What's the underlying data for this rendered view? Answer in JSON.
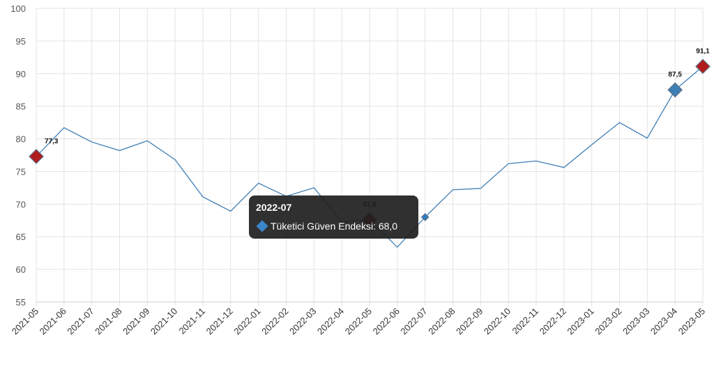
{
  "chart_data": {
    "type": "line",
    "x": [
      "2021-05",
      "2021-06",
      "2021-07",
      "2021-08",
      "2021-09",
      "2021-10",
      "2021-11",
      "2021-12",
      "2022-01",
      "2022-02",
      "2022-03",
      "2022-04",
      "2022-05",
      "2022-06",
      "2022-07",
      "2022-08",
      "2022-09",
      "2022-10",
      "2022-11",
      "2022-12",
      "2023-01",
      "2023-02",
      "2023-03",
      "2023-04",
      "2023-05"
    ],
    "series": [
      {
        "name": "Tüketici Güven Endeksi",
        "values": [
          77.3,
          81.7,
          79.5,
          78.2,
          79.7,
          76.8,
          71.1,
          68.9,
          73.2,
          71.2,
          72.5,
          67.3,
          67.6,
          63.4,
          68.0,
          72.2,
          72.4,
          76.2,
          76.6,
          75.6,
          79.1,
          82.5,
          80.1,
          87.5,
          91.1
        ],
        "color": "#3f7fb5"
      }
    ],
    "ylim": [
      55,
      100
    ],
    "yticks": [
      "55",
      "60",
      "65",
      "70",
      "75",
      "80",
      "85",
      "90",
      "95",
      "100"
    ],
    "grid": true,
    "legend": "none",
    "title": "",
    "xlabel": "",
    "ylabel": "",
    "highlighted_points": [
      {
        "x": "2021-05",
        "label": "77,3",
        "color": "#b01c1c"
      },
      {
        "x": "2022-05",
        "label": "67,6",
        "color": "#b01c1c"
      },
      {
        "x": "2023-04",
        "label": "87,5",
        "color": "#3f7fb5"
      },
      {
        "x": "2023-05",
        "label": "91,1",
        "color": "#b01c1c"
      }
    ],
    "hovered_point": {
      "x": "2022-07",
      "color": "#2f7cc4"
    }
  },
  "tooltip": {
    "title": "2022-07",
    "text": "Tüketici Güven Endeksi: 68,0",
    "swatch_color": "#3a86c8"
  }
}
